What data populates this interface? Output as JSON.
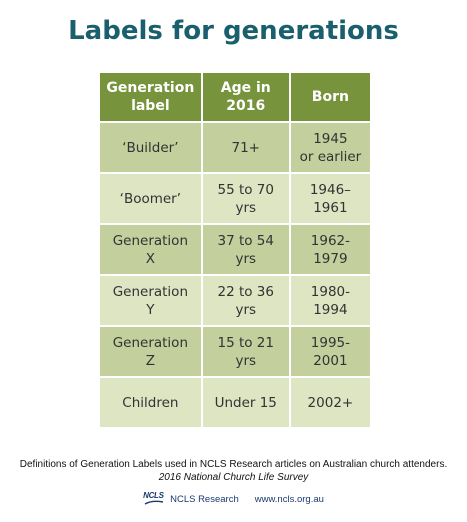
{
  "title": "Labels for generations",
  "table": {
    "headers": [
      [
        "Generation",
        "label"
      ],
      [
        "Age in",
        "2016"
      ],
      [
        "Born"
      ]
    ],
    "rows": [
      {
        "label": [
          "‘Builder’"
        ],
        "age": [
          "71+"
        ],
        "born": [
          "1945",
          "or earlier"
        ]
      },
      {
        "label": [
          "‘Boomer’"
        ],
        "age": [
          "55 to 70",
          "yrs"
        ],
        "born": [
          "1946–",
          "1961"
        ]
      },
      {
        "label": [
          "Generation",
          "X"
        ],
        "age": [
          "37 to 54",
          "yrs"
        ],
        "born": [
          "1962-",
          "1979"
        ]
      },
      {
        "label": [
          "Generation",
          "Y"
        ],
        "age": [
          "22 to 36",
          "yrs"
        ],
        "born": [
          "1980-",
          "1994"
        ]
      },
      {
        "label": [
          "Generation",
          "Z"
        ],
        "age": [
          "15 to 21",
          "yrs"
        ],
        "born": [
          "1995-",
          "2001"
        ]
      },
      {
        "label": [
          "Children"
        ],
        "age": [
          "Under 15"
        ],
        "born": [
          "2002+"
        ]
      }
    ]
  },
  "caption": {
    "line1": "Definitions of Generation Labels used in NCLS Research articles on Australian church attenders.",
    "line2": "2016 National Church Life Survey"
  },
  "footer": {
    "logo_text": "NCLS",
    "logo_subtext": "Research",
    "org": "NCLS Research",
    "url": "www.ncls.org.au"
  },
  "colors": {
    "title": "#1a5f6e",
    "header_bg": "#77933c",
    "row_dark": "#c3cf9d",
    "row_light": "#dde5c3"
  }
}
